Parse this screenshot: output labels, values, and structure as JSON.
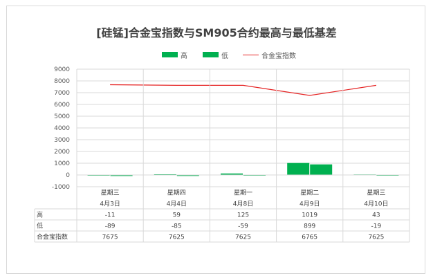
{
  "chart_data": {
    "type": "bar",
    "title": "[硅锰]合金宝指数与SM905合约最高与最低基差",
    "categories": [
      {
        "weekday": "星期三",
        "date": "4月3日"
      },
      {
        "weekday": "星期四",
        "date": "4月4日"
      },
      {
        "weekday": "星期一",
        "date": "4月8日"
      },
      {
        "weekday": "星期二",
        "date": "4月9日"
      },
      {
        "weekday": "星期三",
        "date": "4月10日"
      }
    ],
    "series": [
      {
        "name": "高",
        "kind": "bar",
        "color": "#00b050",
        "values": [
          -11,
          59,
          125,
          1019,
          43
        ]
      },
      {
        "name": "低",
        "kind": "bar",
        "color": "#00b050",
        "values": [
          -89,
          -85,
          -59,
          899,
          -19
        ]
      },
      {
        "name": "合金宝指数",
        "kind": "line",
        "color": "#e52222",
        "values": [
          7675,
          7625,
          7625,
          6765,
          7625
        ]
      }
    ],
    "y_ticks": [
      "9000",
      "8000",
      "7000",
      "6000",
      "5000",
      "4000",
      "3000",
      "2000",
      "1000",
      "0",
      "-1000"
    ],
    "ylim": [
      -1000,
      9000
    ],
    "grid": true,
    "legend_position": "top",
    "data_table": [
      {
        "label": "高",
        "values": [
          "-11",
          "59",
          "125",
          "1019",
          "43"
        ]
      },
      {
        "label": "低",
        "values": [
          "-89",
          "-85",
          "-59",
          "899",
          "-19"
        ]
      },
      {
        "label": "合金宝指数",
        "values": [
          "7675",
          "7625",
          "7625",
          "6765",
          "7625"
        ]
      }
    ]
  }
}
